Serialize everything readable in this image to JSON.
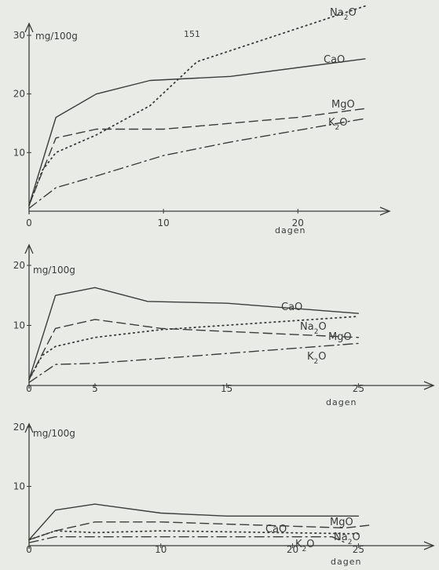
{
  "page_number": "151",
  "chart_data": [
    {
      "type": "line",
      "ylabel": "mg/100g",
      "xlabel": "dagen",
      "xlim": [
        0,
        26
      ],
      "ylim": [
        0,
        30
      ],
      "x_ticks": [
        0,
        10,
        20
      ],
      "y_ticks": [
        10,
        20,
        30
      ],
      "series": [
        {
          "name": "CaO",
          "style": "solid",
          "x": [
            0,
            2,
            5,
            9,
            15,
            25
          ],
          "values": [
            1,
            16,
            20,
            22.3,
            23,
            26
          ]
        },
        {
          "name": "MgO",
          "style": "dashed",
          "x": [
            0,
            2,
            5,
            10,
            20,
            25
          ],
          "values": [
            1,
            12.5,
            14,
            14,
            16,
            17.5
          ]
        },
        {
          "name": "Na2O",
          "style": "dotted",
          "x": [
            0,
            1,
            2,
            5,
            9,
            12.5,
            25
          ],
          "values": [
            1,
            7,
            10,
            13,
            18,
            25.5,
            35
          ]
        },
        {
          "name": "K2O",
          "style": "dashdot",
          "x": [
            0,
            2,
            5,
            10,
            15,
            25
          ],
          "values": [
            0.5,
            4,
            6,
            9.5,
            11.8,
            15.8
          ]
        }
      ]
    },
    {
      "type": "line",
      "ylabel": "mg/100g",
      "xlabel": "dagen",
      "xlim": [
        0,
        27
      ],
      "ylim": [
        0,
        20
      ],
      "x_ticks": [
        0,
        5,
        15,
        25
      ],
      "y_ticks": [
        10,
        20
      ],
      "series": [
        {
          "name": "CaO",
          "style": "solid",
          "x": [
            0,
            2,
            5,
            9,
            15,
            25
          ],
          "values": [
            1,
            15,
            16.3,
            14,
            13.7,
            12
          ]
        },
        {
          "name": "Na2O",
          "style": "dotted",
          "x": [
            0,
            1,
            2,
            5,
            10,
            25
          ],
          "values": [
            1,
            5,
            6.5,
            8,
            9.3,
            11.5
          ]
        },
        {
          "name": "MgO",
          "style": "dashed",
          "x": [
            0,
            2,
            5,
            10,
            25
          ],
          "values": [
            1,
            9.5,
            11,
            9.5,
            8
          ]
        },
        {
          "name": "K2O",
          "style": "dashdot",
          "x": [
            0,
            2,
            5,
            10,
            25
          ],
          "values": [
            0.5,
            3.5,
            3.7,
            4.5,
            7
          ]
        }
      ]
    },
    {
      "type": "line",
      "ylabel": "mg/100g",
      "xlabel": "dagen",
      "xlim": [
        0,
        27
      ],
      "ylim": [
        0,
        20
      ],
      "x_ticks": [
        0,
        10,
        20,
        25
      ],
      "y_ticks": [
        10,
        20
      ],
      "series": [
        {
          "name": "CaO",
          "style": "solid",
          "x": [
            0,
            2,
            5,
            10,
            15,
            25
          ],
          "values": [
            1,
            6,
            7,
            5.5,
            5,
            5
          ]
        },
        {
          "name": "MgO",
          "style": "dashed",
          "x": [
            0,
            2,
            5,
            10,
            24,
            26
          ],
          "values": [
            1,
            2.5,
            4,
            4,
            3,
            3.5
          ]
        },
        {
          "name": "Na2O",
          "style": "dotted",
          "x": [
            0,
            2,
            5,
            10,
            25
          ],
          "values": [
            1,
            2.5,
            2.2,
            2.5,
            2
          ]
        },
        {
          "name": "K2O",
          "style": "dashdot",
          "x": [
            0,
            2,
            10,
            23,
            24
          ],
          "values": [
            0.5,
            1.5,
            1.5,
            1.5,
            0.5
          ]
        }
      ]
    }
  ]
}
